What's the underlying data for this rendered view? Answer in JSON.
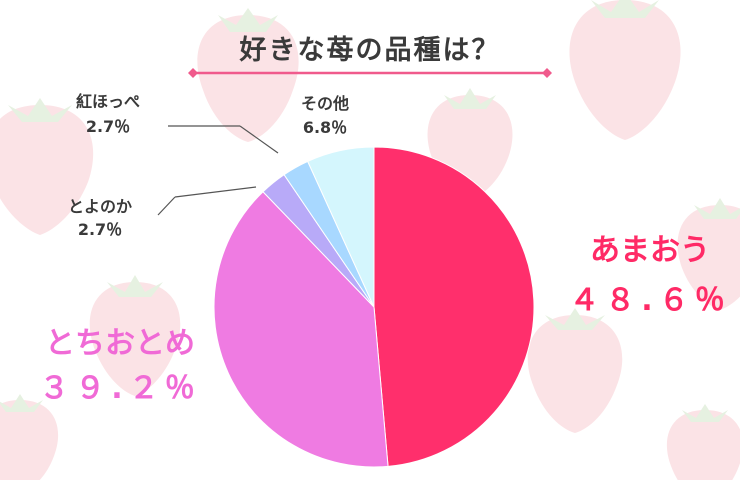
{
  "title": "好きな苺の品種は？",
  "colors": {
    "title_underline": "#f05a8c",
    "leader_line": "#555555",
    "strawberry": "#fbe3e6",
    "strawberry_leaf": "#e6f1e1"
  },
  "chart_data": {
    "type": "pie",
    "title": "好きな苺の品種は？",
    "start": "12 o'clock, clockwise",
    "slices": [
      {
        "label": "あまおう",
        "value_text": "４８.６％",
        "value": 48.6,
        "color": "#ff2f6c",
        "text_color": "#ff2a66"
      },
      {
        "label": "とちおとめ",
        "value_text": "３９.２％",
        "value": 39.2,
        "color": "#ef7be2",
        "text_color": "#f06ad6"
      },
      {
        "label": "とよのか",
        "value_text": "2.7％",
        "value": 2.7,
        "color": "#b8aaf8",
        "text_color": "#3a3a3a"
      },
      {
        "label": "紅ほっぺ",
        "value_text": "2.7％",
        "value": 2.7,
        "color": "#a8d8ff",
        "text_color": "#3a3a3a"
      },
      {
        "label": "その他",
        "value_text": "6.8％",
        "value": 6.8,
        "color": "#d4f6fd",
        "text_color": "#3a3a3a"
      }
    ]
  }
}
